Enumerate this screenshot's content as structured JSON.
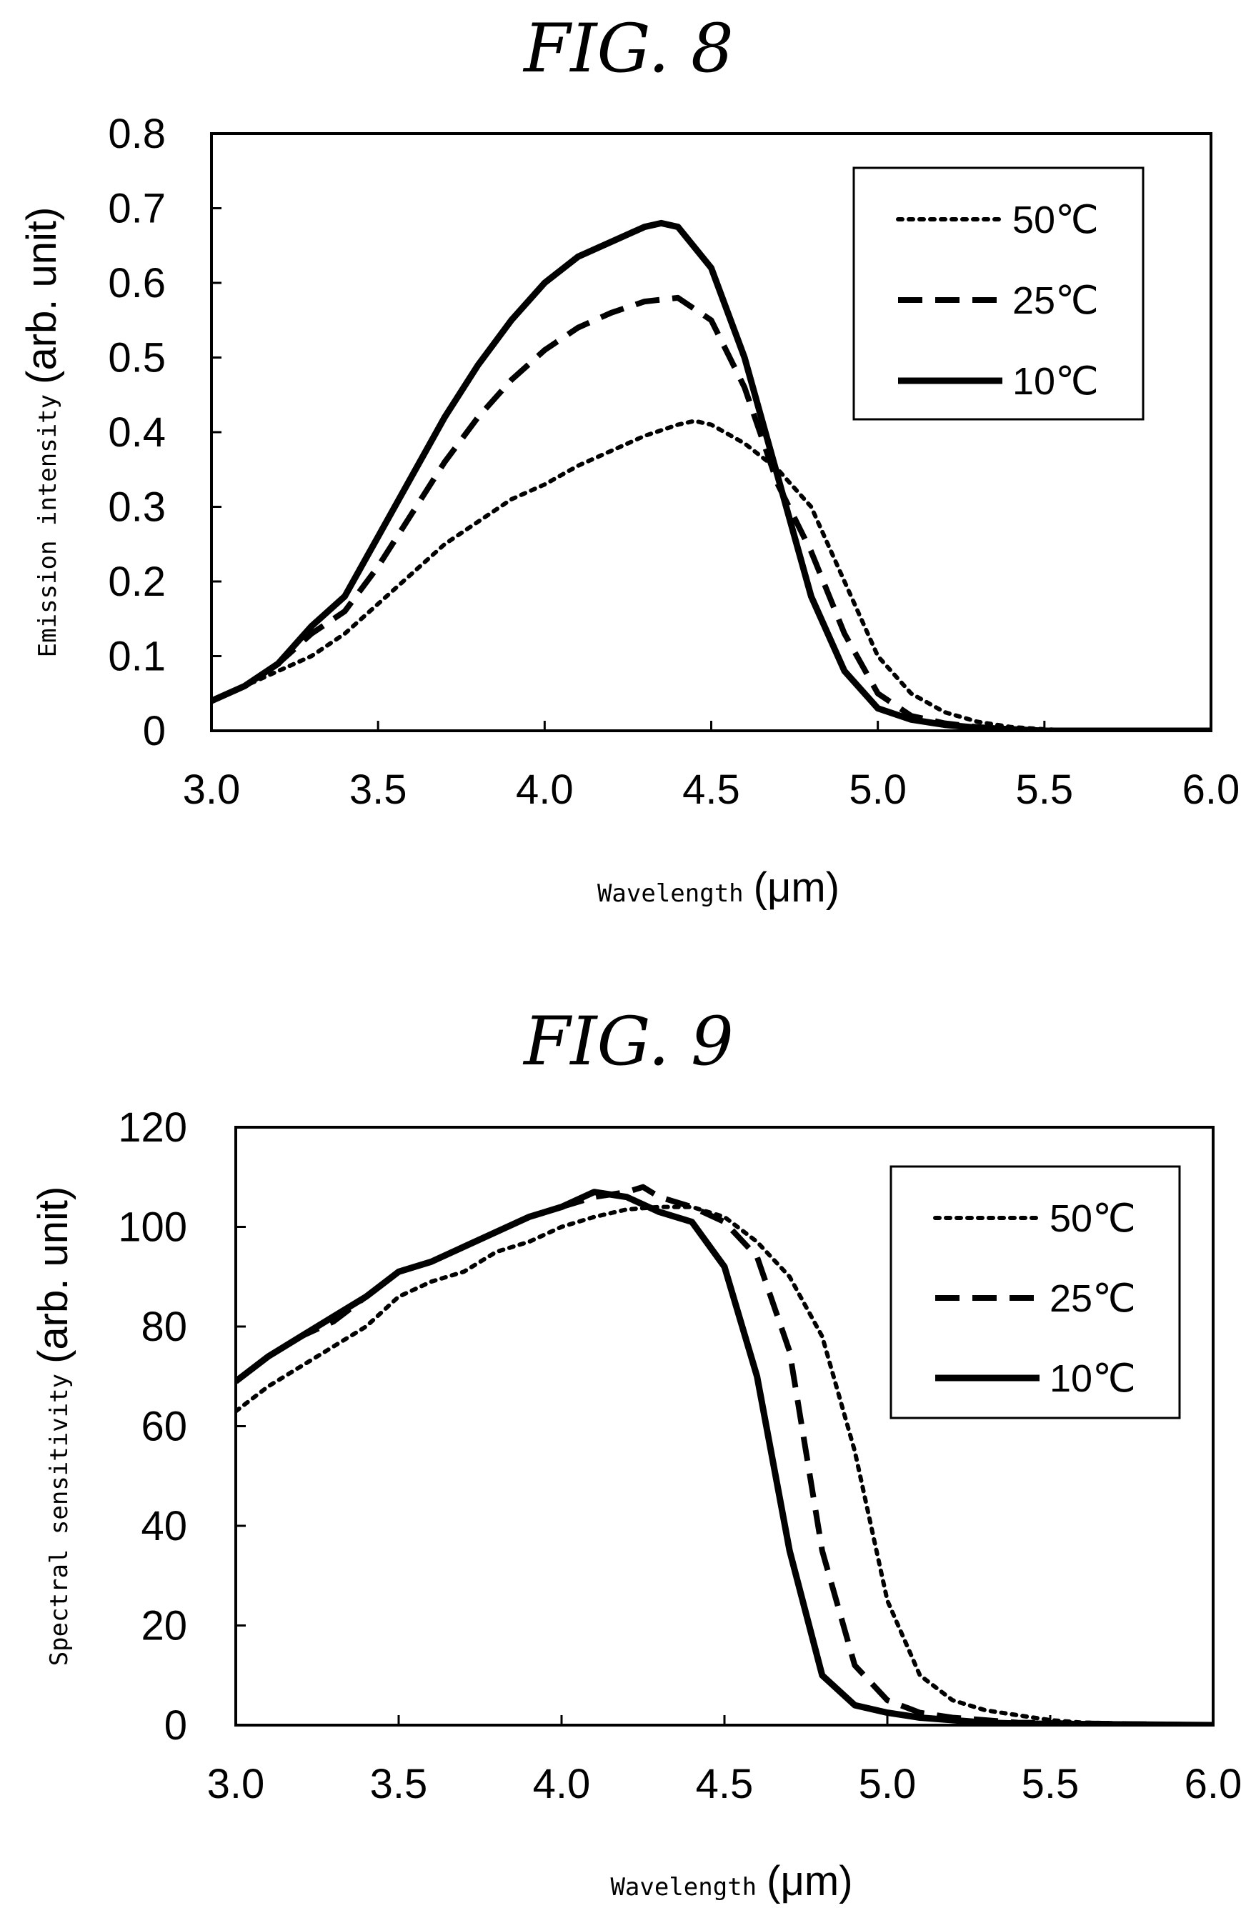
{
  "chart_data": [
    {
      "type": "line",
      "title": "FIG. 8",
      "xlabel": "Wavelength",
      "xlabel_unit": "(μm)",
      "ylabel": "Emission intensity",
      "ylabel_unit": "(arb. unit)",
      "xlim": [
        3.0,
        6.0
      ],
      "ylim": [
        0,
        0.8
      ],
      "x_ticks": [
        "3.0",
        "3.5",
        "4.0",
        "4.5",
        "5.0",
        "5.5",
        "6.0"
      ],
      "y_ticks": [
        "0",
        "0.1",
        "0.2",
        "0.3",
        "0.4",
        "0.5",
        "0.6",
        "0.7",
        "0.8"
      ],
      "grid": false,
      "legend_position": "top-right",
      "series": [
        {
          "name": "50℃",
          "style": "dotted",
          "x": [
            3.0,
            3.1,
            3.2,
            3.3,
            3.4,
            3.5,
            3.6,
            3.7,
            3.8,
            3.9,
            4.0,
            4.1,
            4.2,
            4.3,
            4.4,
            4.45,
            4.5,
            4.6,
            4.7,
            4.8,
            4.9,
            5.0,
            5.1,
            5.2,
            5.3,
            5.4,
            5.5,
            5.6,
            6.0
          ],
          "y": [
            0.04,
            0.06,
            0.08,
            0.1,
            0.13,
            0.17,
            0.21,
            0.25,
            0.28,
            0.31,
            0.33,
            0.355,
            0.375,
            0.395,
            0.41,
            0.415,
            0.41,
            0.385,
            0.35,
            0.3,
            0.2,
            0.1,
            0.05,
            0.025,
            0.012,
            0.005,
            0.002,
            0.0,
            0.0
          ]
        },
        {
          "name": "25℃",
          "style": "dashed",
          "x": [
            3.0,
            3.1,
            3.2,
            3.3,
            3.4,
            3.5,
            3.6,
            3.7,
            3.8,
            3.9,
            4.0,
            4.1,
            4.2,
            4.3,
            4.4,
            4.5,
            4.6,
            4.7,
            4.8,
            4.9,
            5.0,
            5.1,
            5.2,
            5.3,
            5.4,
            5.5,
            6.0
          ],
          "y": [
            0.04,
            0.06,
            0.09,
            0.13,
            0.16,
            0.22,
            0.29,
            0.36,
            0.42,
            0.47,
            0.51,
            0.54,
            0.56,
            0.575,
            0.58,
            0.55,
            0.46,
            0.33,
            0.24,
            0.13,
            0.05,
            0.02,
            0.01,
            0.005,
            0.002,
            0.0,
            0.0
          ]
        },
        {
          "name": "10℃",
          "style": "solid",
          "x": [
            3.0,
            3.1,
            3.2,
            3.3,
            3.4,
            3.5,
            3.6,
            3.7,
            3.8,
            3.9,
            4.0,
            4.1,
            4.2,
            4.3,
            4.35,
            4.4,
            4.5,
            4.6,
            4.7,
            4.8,
            4.9,
            5.0,
            5.1,
            5.2,
            5.3,
            5.4,
            5.5,
            6.0
          ],
          "y": [
            0.04,
            0.06,
            0.09,
            0.14,
            0.18,
            0.26,
            0.34,
            0.42,
            0.49,
            0.55,
            0.6,
            0.635,
            0.655,
            0.675,
            0.68,
            0.675,
            0.62,
            0.5,
            0.34,
            0.18,
            0.08,
            0.03,
            0.015,
            0.008,
            0.004,
            0.002,
            0.0,
            0.0
          ]
        }
      ]
    },
    {
      "type": "line",
      "title": "FIG. 9",
      "xlabel": "Wavelength",
      "xlabel_unit": "(μm)",
      "ylabel": "Spectral sensitivity",
      "ylabel_unit": "(arb. unit)",
      "xlim": [
        3.0,
        6.0
      ],
      "ylim": [
        0,
        120
      ],
      "x_ticks": [
        "3.0",
        "3.5",
        "4.0",
        "4.5",
        "5.0",
        "5.5",
        "6.0"
      ],
      "y_ticks": [
        "0",
        "20",
        "40",
        "60",
        "80",
        "100",
        "120"
      ],
      "grid": false,
      "legend_position": "top-right",
      "series": [
        {
          "name": "50℃",
          "style": "dotted",
          "x": [
            3.0,
            3.1,
            3.2,
            3.3,
            3.4,
            3.5,
            3.6,
            3.7,
            3.8,
            3.9,
            4.0,
            4.1,
            4.2,
            4.3,
            4.4,
            4.5,
            4.6,
            4.7,
            4.8,
            4.9,
            5.0,
            5.1,
            5.2,
            5.3,
            5.4,
            5.5,
            5.6,
            6.0
          ],
          "y": [
            63,
            68,
            72,
            76,
            80,
            86,
            89,
            91,
            95,
            97,
            100,
            102,
            103.5,
            104,
            104,
            102,
            97,
            90,
            78,
            55,
            25,
            10,
            5,
            3,
            2,
            1,
            0.5,
            0
          ]
        },
        {
          "name": "25℃",
          "style": "dashed",
          "x": [
            3.0,
            3.1,
            3.2,
            3.3,
            3.4,
            3.5,
            3.6,
            3.7,
            3.8,
            3.9,
            4.0,
            4.1,
            4.2,
            4.25,
            4.3,
            4.4,
            4.5,
            4.6,
            4.7,
            4.8,
            4.9,
            5.0,
            5.1,
            5.2,
            5.3,
            5.4,
            6.0
          ],
          "y": [
            69,
            74,
            78,
            81,
            86,
            91,
            93,
            96,
            99,
            102,
            104,
            106,
            107,
            108,
            106,
            104,
            101,
            94,
            75,
            35,
            12,
            5,
            2.5,
            1.5,
            1,
            0.5,
            0
          ]
        },
        {
          "name": "10℃",
          "style": "solid",
          "x": [
            3.0,
            3.1,
            3.2,
            3.3,
            3.4,
            3.5,
            3.6,
            3.7,
            3.8,
            3.9,
            4.0,
            4.1,
            4.2,
            4.3,
            4.4,
            4.5,
            4.6,
            4.7,
            4.8,
            4.9,
            5.0,
            5.1,
            5.2,
            5.3,
            5.4,
            6.0
          ],
          "y": [
            69,
            74,
            78,
            82,
            86,
            91,
            93,
            96,
            99,
            102,
            104,
            107,
            106,
            103,
            101,
            92,
            70,
            35,
            10,
            4,
            2.5,
            1.5,
            1,
            0.5,
            0.3,
            0
          ]
        }
      ]
    }
  ]
}
